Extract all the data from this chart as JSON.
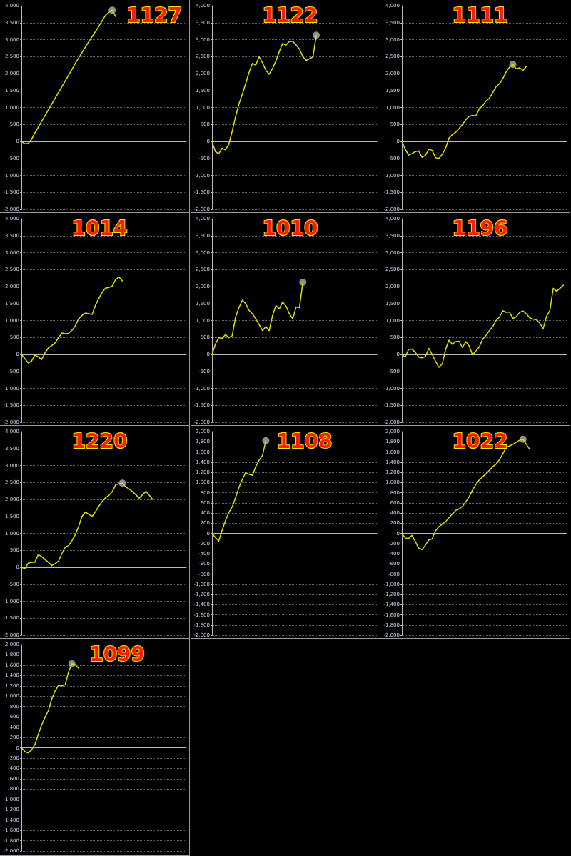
{
  "chart_data": [
    {
      "type": "line",
      "title": "1127",
      "categories": [
        null,
        null,
        null,
        null,
        null,
        null,
        null,
        null,
        null,
        null,
        null,
        null,
        null,
        null,
        null,
        null,
        null,
        null,
        null,
        null,
        null,
        null,
        null,
        null,
        null,
        null,
        null,
        null,
        null,
        null,
        null,
        null,
        null,
        null,
        null,
        null,
        null,
        null,
        null,
        null,
        null,
        null,
        null,
        null,
        null,
        null,
        null,
        null,
        null,
        null
      ],
      "series": [
        {
          "color": "#e0e000",
          "values": [
            0,
            -70,
            -60,
            60,
            250,
            420,
            590,
            760,
            930,
            1100,
            1270,
            1440,
            1610,
            1780,
            1950,
            2120,
            2300,
            2460,
            2620,
            2780,
            2940,
            3090,
            3240,
            3390,
            3560,
            3720,
            3800,
            3870,
            3680,
            null,
            null,
            null,
            null,
            null,
            null,
            null,
            null,
            null,
            null,
            null,
            null,
            null,
            null,
            null,
            null,
            null,
            null,
            null,
            null,
            null
          ]
        },
        {
          "type": "scatter",
          "color": "#b0b0b0",
          "values": [
            null,
            null,
            null,
            null,
            null,
            null,
            null,
            null,
            null,
            null,
            null,
            null,
            null,
            null,
            null,
            null,
            null,
            null,
            null,
            null,
            null,
            null,
            null,
            null,
            null,
            null,
            null,
            3870,
            null,
            null,
            null,
            null,
            null,
            null,
            null,
            null,
            null,
            null,
            null,
            null,
            null,
            null,
            null,
            null,
            null,
            null,
            null,
            null,
            null,
            null
          ]
        }
      ],
      "ylim": [
        -2000,
        4000
      ],
      "yticks": [
        {
          "value": -2000,
          "label": "-2,000"
        },
        {
          "value": -1500,
          "label": "-1,500"
        },
        {
          "value": -1000,
          "label": "-1,000"
        },
        -500,
        0,
        500,
        {
          "value": 1000,
          "label": "1,000"
        },
        {
          "value": 1500,
          "label": "1,500"
        },
        {
          "value": 2000,
          "label": "2,000"
        },
        {
          "value": 2500,
          "label": "2,500"
        },
        {
          "value": 3000,
          "label": "3,000"
        },
        {
          "value": 3500,
          "label": "3,500"
        },
        {
          "value": 4000,
          "label": "4,000"
        }
      ],
      "grid": "y",
      "tick_labels": "y"
    },
    {
      "type": "line",
      "title": "1122",
      "categories": [
        null,
        null,
        null,
        null,
        null,
        null,
        null,
        null,
        null,
        null,
        null,
        null,
        null,
        null,
        null,
        null,
        null,
        null,
        null,
        null,
        null,
        null,
        null,
        null,
        null,
        null,
        null,
        null,
        null,
        null,
        null,
        null,
        null,
        null,
        null,
        null,
        null,
        null,
        null,
        null,
        null,
        null,
        null,
        null,
        null,
        null,
        null,
        null,
        null,
        null
      ],
      "series": [
        {
          "color": "#e0e000",
          "values": [
            0,
            -300,
            -360,
            -200,
            -250,
            -80,
            300,
            730,
            1100,
            1390,
            1700,
            2030,
            2300,
            2250,
            2500,
            2320,
            2100,
            1980,
            2150,
            2370,
            2650,
            2890,
            2840,
            2950,
            2950,
            2840,
            2720,
            2500,
            2390,
            2440,
            2490,
            3130,
            null,
            null,
            null,
            null,
            null,
            null,
            null,
            null,
            null,
            null,
            null,
            null,
            null,
            null,
            null,
            null,
            null,
            null
          ]
        },
        {
          "type": "scatter",
          "color": "#b0b0b0",
          "values": [
            null,
            null,
            null,
            null,
            null,
            null,
            null,
            null,
            null,
            null,
            null,
            null,
            null,
            null,
            null,
            null,
            null,
            null,
            null,
            null,
            null,
            null,
            null,
            null,
            null,
            null,
            null,
            null,
            null,
            null,
            null,
            3130,
            null,
            null,
            null,
            null,
            null,
            null,
            null,
            null,
            null,
            null,
            null,
            null,
            null,
            null,
            null,
            null,
            null,
            null
          ]
        }
      ],
      "ylim": [
        -2000,
        4000
      ],
      "yticks": [
        {
          "value": -2000,
          "label": "-2,000"
        },
        {
          "value": -1500,
          "label": "-1,500"
        },
        {
          "value": -1000,
          "label": "-1,000"
        },
        -500,
        0,
        500,
        {
          "value": 1000,
          "label": "1,000"
        },
        {
          "value": 1500,
          "label": "1,500"
        },
        {
          "value": 2000,
          "label": "2,000"
        },
        {
          "value": 2500,
          "label": "2,500"
        },
        {
          "value": 3000,
          "label": "3,000"
        },
        {
          "value": 3500,
          "label": "3,500"
        },
        {
          "value": 4000,
          "label": "4,000"
        }
      ],
      "grid": "y",
      "tick_labels": "y"
    },
    {
      "type": "line",
      "title": "1111",
      "categories": [
        null,
        null,
        null,
        null,
        null,
        null,
        null,
        null,
        null,
        null,
        null,
        null,
        null,
        null,
        null,
        null,
        null,
        null,
        null,
        null,
        null,
        null,
        null,
        null,
        null,
        null,
        null,
        null,
        null,
        null,
        null,
        null,
        null,
        null,
        null,
        null,
        null,
        null,
        null,
        null,
        null,
        null,
        null,
        null,
        null,
        null,
        null,
        null,
        null,
        null
      ],
      "series": [
        {
          "color": "#e0e000",
          "values": [
            0,
            -230,
            -400,
            -360,
            -300,
            -280,
            -470,
            -410,
            -230,
            -260,
            -480,
            -500,
            -380,
            -200,
            100,
            200,
            270,
            380,
            500,
            640,
            740,
            770,
            750,
            960,
            1050,
            1190,
            1270,
            1440,
            1610,
            1700,
            1850,
            2050,
            2190,
            2270,
            2140,
            2170,
            2090,
            2210,
            null,
            null,
            null,
            null,
            null,
            null,
            null,
            null,
            null,
            null,
            null,
            null
          ]
        },
        {
          "type": "scatter",
          "color": "#b0b0b0",
          "values": [
            null,
            null,
            null,
            null,
            null,
            null,
            null,
            null,
            null,
            null,
            null,
            null,
            null,
            null,
            null,
            null,
            null,
            null,
            null,
            null,
            null,
            null,
            null,
            null,
            null,
            null,
            null,
            null,
            null,
            null,
            null,
            null,
            null,
            2270,
            null,
            null,
            null,
            null,
            null,
            null,
            null,
            null,
            null,
            null,
            null,
            null,
            null,
            null,
            null,
            null
          ]
        }
      ],
      "ylim": [
        -2000,
        4000
      ],
      "yticks": [
        {
          "value": -2000,
          "label": "-2,000"
        },
        {
          "value": -1500,
          "label": "-1,500"
        },
        {
          "value": -1000,
          "label": "-1,000"
        },
        -500,
        0,
        500,
        {
          "value": 1000,
          "label": "1,000"
        },
        {
          "value": 1500,
          "label": "1,500"
        },
        {
          "value": 2000,
          "label": "2,000"
        },
        {
          "value": 2500,
          "label": "2,500"
        },
        {
          "value": 3000,
          "label": "3,000"
        },
        {
          "value": 3500,
          "label": "3,500"
        },
        {
          "value": 4000,
          "label": "4,000"
        }
      ],
      "grid": "y",
      "tick_labels": "y"
    },
    {
      "type": "line",
      "title": "1014",
      "categories": [
        null,
        null,
        null,
        null,
        null,
        null,
        null,
        null,
        null,
        null,
        null,
        null,
        null,
        null,
        null,
        null,
        null,
        null,
        null,
        null,
        null,
        null,
        null,
        null,
        null,
        null,
        null,
        null,
        null,
        null,
        null,
        null,
        null,
        null,
        null,
        null,
        null,
        null,
        null,
        null,
        null,
        null,
        null,
        null,
        null,
        null,
        null,
        null,
        null,
        null
      ],
      "series": [
        {
          "color": "#e0e000",
          "values": [
            0,
            -120,
            -250,
            -200,
            -20,
            -70,
            -150,
            50,
            190,
            260,
            340,
            490,
            630,
            610,
            620,
            710,
            840,
            1050,
            1150,
            1220,
            1200,
            1180,
            1450,
            1650,
            1830,
            1960,
            1970,
            2020,
            2210,
            2280,
            2170,
            null,
            null,
            null,
            null,
            null,
            null,
            null,
            null,
            null,
            null,
            null,
            null,
            null,
            null,
            null,
            null,
            null,
            null,
            null
          ]
        }
      ],
      "ylim": [
        -2000,
        4000
      ],
      "yticks": [
        {
          "value": -2000,
          "label": "-2,000"
        },
        {
          "value": -1500,
          "label": "-1,500"
        },
        {
          "value": -1000,
          "label": "-1,000"
        },
        -500,
        0,
        500,
        {
          "value": 1000,
          "label": "1,000"
        },
        {
          "value": 1500,
          "label": "1,500"
        },
        {
          "value": 2000,
          "label": "2,000"
        },
        {
          "value": 2500,
          "label": "2,500"
        },
        {
          "value": 3000,
          "label": "3,000"
        },
        {
          "value": 3500,
          "label": "3,500"
        },
        {
          "value": 4000,
          "label": "4,000"
        }
      ],
      "grid": "y",
      "tick_labels": "y"
    },
    {
      "type": "line",
      "title": "1010",
      "categories": [
        null,
        null,
        null,
        null,
        null,
        null,
        null,
        null,
        null,
        null,
        null,
        null,
        null,
        null,
        null,
        null,
        null,
        null,
        null,
        null,
        null,
        null,
        null,
        null,
        null,
        null,
        null,
        null,
        null,
        null,
        null,
        null,
        null,
        null,
        null,
        null,
        null,
        null,
        null,
        null,
        null,
        null,
        null,
        null,
        null,
        null,
        null,
        null,
        null,
        null
      ],
      "series": [
        {
          "color": "#e0e000",
          "values": [
            0,
            300,
            500,
            470,
            590,
            490,
            550,
            1100,
            1380,
            1600,
            1500,
            1300,
            1200,
            1050,
            880,
            700,
            820,
            700,
            1150,
            1440,
            1340,
            1550,
            1420,
            1200,
            1050,
            1400,
            1380,
            2130,
            null,
            null,
            null,
            null,
            null,
            null,
            null,
            null,
            null,
            null,
            null,
            null,
            null,
            null,
            null,
            null,
            null,
            null,
            null,
            null,
            null,
            null
          ]
        },
        {
          "type": "scatter",
          "color": "#b0b0b0",
          "values": [
            null,
            null,
            null,
            null,
            null,
            null,
            null,
            null,
            null,
            null,
            null,
            null,
            null,
            null,
            null,
            null,
            null,
            null,
            null,
            null,
            null,
            null,
            null,
            null,
            null,
            null,
            null,
            2130,
            null,
            null,
            null,
            null,
            null,
            null,
            null,
            null,
            null,
            null,
            null,
            null,
            null,
            null,
            null,
            null,
            null,
            null,
            null,
            null,
            null,
            null
          ]
        }
      ],
      "ylim": [
        -2000,
        4000
      ],
      "yticks": [
        {
          "value": -2000,
          "label": "-2,000"
        },
        {
          "value": -1500,
          "label": "-1,500"
        },
        {
          "value": -1000,
          "label": "-1,000"
        },
        -500,
        0,
        500,
        {
          "value": 1000,
          "label": "1,000"
        },
        {
          "value": 1500,
          "label": "1,500"
        },
        {
          "value": 2000,
          "label": "2,000"
        },
        {
          "value": 2500,
          "label": "2,500"
        },
        {
          "value": 3000,
          "label": "3,000"
        },
        {
          "value": 3500,
          "label": "3,500"
        },
        {
          "value": 4000,
          "label": "4,000"
        }
      ],
      "grid": "y",
      "tick_labels": "y"
    },
    {
      "type": "line",
      "title": "1196",
      "categories": [
        null,
        null,
        null,
        null,
        null,
        null,
        null,
        null,
        null,
        null,
        null,
        null,
        null,
        null,
        null,
        null,
        null,
        null,
        null,
        null,
        null,
        null,
        null,
        null,
        null,
        null,
        null,
        null,
        null,
        null,
        null,
        null,
        null,
        null,
        null,
        null,
        null,
        null,
        null,
        null,
        null,
        null,
        null,
        null,
        null,
        null,
        null,
        null,
        null,
        null
      ],
      "series": [
        {
          "color": "#e0e000",
          "values": [
            0,
            -80,
            150,
            160,
            60,
            -80,
            -100,
            -60,
            180,
            0,
            -200,
            -380,
            -280,
            150,
            420,
            300,
            380,
            390,
            200,
            380,
            250,
            -10,
            100,
            220,
            450,
            560,
            700,
            820,
            1000,
            1100,
            1290,
            1240,
            1250,
            1060,
            1110,
            1240,
            1280,
            1200,
            1080,
            1040,
            1020,
            920,
            760,
            1120,
            1300,
            1950,
            1860,
            1950,
            2040,
            null
          ]
        }
      ],
      "ylim": [
        -2000,
        4000
      ],
      "yticks": [
        {
          "value": -2000,
          "label": "-2,000"
        },
        {
          "value": -1500,
          "label": "-1,500"
        },
        {
          "value": -1000,
          "label": "-1,000"
        },
        -500,
        0,
        500,
        {
          "value": 1000,
          "label": "1,000"
        },
        {
          "value": 1500,
          "label": "1,500"
        },
        {
          "value": 2000,
          "label": "2,000"
        },
        {
          "value": 2500,
          "label": "2,500"
        },
        {
          "value": 3000,
          "label": "3,000"
        },
        {
          "value": 3500,
          "label": "3,500"
        },
        {
          "value": 4000,
          "label": "4,000"
        }
      ],
      "grid": "y",
      "tick_labels": "y"
    },
    {
      "type": "line",
      "title": "1220",
      "categories": [
        null,
        null,
        null,
        null,
        null,
        null,
        null,
        null,
        null,
        null,
        null,
        null,
        null,
        null,
        null,
        null,
        null,
        null,
        null,
        null,
        null,
        null,
        null,
        null,
        null,
        null,
        null,
        null,
        null,
        null,
        null,
        null,
        null,
        null,
        null,
        null,
        null,
        null,
        null,
        null,
        null,
        null,
        null,
        null,
        null,
        null,
        null,
        null,
        null,
        null
      ],
      "series": [
        {
          "color": "#e0e000",
          "values": [
            0,
            -40,
            120,
            150,
            150,
            370,
            320,
            230,
            150,
            50,
            110,
            180,
            400,
            590,
            640,
            780,
            960,
            1200,
            1500,
            1630,
            1560,
            1500,
            1640,
            1800,
            1940,
            2050,
            2120,
            2230,
            2430,
            2460,
            2480,
            2370,
            2310,
            2230,
            2140,
            2040,
            2140,
            2240,
            2120,
            2000,
            null,
            null,
            null,
            null,
            null,
            null,
            null,
            null,
            null,
            null
          ]
        },
        {
          "type": "scatter",
          "color": "#b0b0b0",
          "values": [
            null,
            null,
            null,
            null,
            null,
            null,
            null,
            null,
            null,
            null,
            null,
            null,
            null,
            null,
            null,
            null,
            null,
            null,
            null,
            null,
            null,
            null,
            null,
            null,
            null,
            null,
            null,
            null,
            null,
            null,
            2480,
            null,
            null,
            null,
            null,
            null,
            null,
            null,
            null,
            null,
            null,
            null,
            null,
            null,
            null,
            null,
            null,
            null,
            null,
            null
          ]
        }
      ],
      "ylim": [
        -2000,
        4000
      ],
      "yticks": [
        {
          "value": -2000,
          "label": "-2,000"
        },
        {
          "value": -1500,
          "label": "-1,500"
        },
        {
          "value": -1000,
          "label": "-1,000"
        },
        -500,
        0,
        500,
        {
          "value": 1000,
          "label": "1,000"
        },
        {
          "value": 1500,
          "label": "1,500"
        },
        {
          "value": 2000,
          "label": "2,000"
        },
        {
          "value": 2500,
          "label": "2,500"
        },
        {
          "value": 3000,
          "label": "3,000"
        },
        {
          "value": 3500,
          "label": "3,500"
        },
        {
          "value": 4000,
          "label": "4,000"
        }
      ],
      "grid": "y",
      "tick_labels": "y"
    },
    {
      "type": "line",
      "title": "1108",
      "categories": [
        null,
        null,
        null,
        null,
        null,
        null,
        null,
        null,
        null,
        null,
        null,
        null,
        null,
        null,
        null,
        null,
        null,
        null,
        null,
        null,
        null,
        null,
        null,
        null,
        null,
        null,
        null,
        null,
        null,
        null,
        null,
        null,
        null,
        null,
        null,
        null,
        null,
        null,
        null,
        null,
        null,
        null,
        null,
        null,
        null,
        null,
        null,
        null,
        null,
        null
      ],
      "series": [
        {
          "color": "#e0e000",
          "values": [
            0,
            -80,
            -150,
            60,
            250,
            410,
            520,
            700,
            900,
            1060,
            1190,
            1160,
            1140,
            1310,
            1440,
            1530,
            1820,
            null,
            null,
            null,
            null,
            null,
            null,
            null,
            null,
            null,
            null,
            null,
            null,
            null,
            null,
            null,
            null,
            null,
            null,
            null,
            null,
            null,
            null,
            null,
            null,
            null,
            null,
            null,
            null,
            null,
            null,
            null,
            null,
            null
          ]
        },
        {
          "type": "scatter",
          "color": "#b0b0b0",
          "values": [
            null,
            null,
            null,
            null,
            null,
            null,
            null,
            null,
            null,
            null,
            null,
            null,
            null,
            null,
            null,
            null,
            1820,
            null,
            null,
            null,
            null,
            null,
            null,
            null,
            null,
            null,
            null,
            null,
            null,
            null,
            null,
            null,
            null,
            null,
            null,
            null,
            null,
            null,
            null,
            null,
            null,
            null,
            null,
            null,
            null,
            null,
            null,
            null,
            null,
            null
          ]
        }
      ],
      "ylim": [
        -2000,
        2000
      ],
      "yticks": [
        {
          "value": -2000,
          "label": "-2,000"
        },
        {
          "value": -1800,
          "label": "-1,800"
        },
        {
          "value": -1600,
          "label": "-1,600"
        },
        {
          "value": -1400,
          "label": "-1,400"
        },
        {
          "value": -1200,
          "label": "-1,200"
        },
        {
          "value": -1000,
          "label": "-1,000"
        },
        -800,
        -600,
        -400,
        -200,
        0,
        200,
        400,
        600,
        800,
        {
          "value": 1000,
          "label": "1,000"
        },
        {
          "value": 1200,
          "label": "1,200"
        },
        {
          "value": 1400,
          "label": "1,400"
        },
        {
          "value": 1600,
          "label": "1,600"
        },
        {
          "value": 1800,
          "label": "1,800"
        },
        {
          "value": 2000,
          "label": "2,000"
        }
      ],
      "grid": "y",
      "tick_labels": "y"
    },
    {
      "type": "line",
      "title": "1022",
      "categories": [
        null,
        null,
        null,
        null,
        null,
        null,
        null,
        null,
        null,
        null,
        null,
        null,
        null,
        null,
        null,
        null,
        null,
        null,
        null,
        null,
        null,
        null,
        null,
        null,
        null,
        null,
        null,
        null,
        null,
        null,
        null,
        null,
        null,
        null,
        null,
        null,
        null,
        null,
        null,
        null,
        null,
        null,
        null,
        null,
        null,
        null,
        null,
        null,
        null,
        null
      ],
      "series": [
        {
          "color": "#e0e000",
          "values": [
            0,
            -90,
            -100,
            -40,
            -160,
            -290,
            -320,
            -230,
            -130,
            -110,
            50,
            130,
            180,
            230,
            310,
            380,
            450,
            480,
            530,
            620,
            720,
            850,
            960,
            1050,
            1110,
            1170,
            1240,
            1310,
            1360,
            1450,
            1560,
            1690,
            1720,
            1750,
            1790,
            1830,
            1850,
            1750,
            1650,
            null,
            null,
            null,
            null,
            null,
            null,
            null,
            null,
            null,
            null,
            null
          ]
        },
        {
          "type": "scatter",
          "color": "#b0b0b0",
          "values": [
            null,
            null,
            null,
            null,
            null,
            null,
            null,
            null,
            null,
            null,
            null,
            null,
            null,
            null,
            null,
            null,
            null,
            null,
            null,
            null,
            null,
            null,
            null,
            null,
            null,
            null,
            null,
            null,
            null,
            null,
            null,
            null,
            null,
            null,
            null,
            null,
            1850,
            null,
            null,
            null,
            null,
            null,
            null,
            null,
            null,
            null,
            null,
            null,
            null,
            null
          ]
        }
      ],
      "ylim": [
        -2000,
        2000
      ],
      "yticks": [
        {
          "value": -2000,
          "label": "-2,000"
        },
        {
          "value": -1800,
          "label": "-1,800"
        },
        {
          "value": -1600,
          "label": "-1,600"
        },
        {
          "value": -1400,
          "label": "-1,400"
        },
        {
          "value": -1200,
          "label": "-1,200"
        },
        {
          "value": -1000,
          "label": "-1,000"
        },
        -800,
        -600,
        -400,
        -200,
        0,
        200,
        400,
        600,
        800,
        {
          "value": 1000,
          "label": "1,000"
        },
        {
          "value": 1200,
          "label": "1,200"
        },
        {
          "value": 1400,
          "label": "1,400"
        },
        {
          "value": 1600,
          "label": "1,600"
        },
        {
          "value": 1800,
          "label": "1,800"
        },
        {
          "value": 2000,
          "label": "2,000"
        }
      ],
      "grid": "y",
      "tick_labels": "y"
    },
    {
      "type": "line",
      "title": "1099",
      "categories": [
        null,
        null,
        null,
        null,
        null,
        null,
        null,
        null,
        null,
        null,
        null,
        null,
        null,
        null,
        null,
        null,
        null,
        null,
        null,
        null,
        null,
        null,
        null,
        null,
        null,
        null,
        null,
        null,
        null,
        null,
        null,
        null,
        null,
        null,
        null,
        null,
        null,
        null,
        null,
        null,
        null,
        null,
        null,
        null,
        null,
        null,
        null,
        null,
        null,
        null
      ],
      "series": [
        {
          "color": "#e0e000",
          "values": [
            0,
            -70,
            -100,
            -40,
            60,
            260,
            440,
            590,
            720,
            940,
            1100,
            1210,
            1200,
            1220,
            1470,
            1630,
            1610,
            1540,
            null,
            null,
            null,
            null,
            null,
            null,
            null,
            null,
            null,
            null,
            null,
            null,
            null,
            null,
            null,
            null,
            null,
            null,
            null,
            null,
            null,
            null,
            null,
            null,
            null,
            null,
            null,
            null,
            null,
            null,
            null,
            null
          ]
        },
        {
          "type": "scatter",
          "color": "#b0b0b0",
          "values": [
            null,
            null,
            null,
            null,
            null,
            null,
            null,
            null,
            null,
            null,
            null,
            null,
            null,
            null,
            null,
            1630,
            null,
            null,
            null,
            null,
            null,
            null,
            null,
            null,
            null,
            null,
            null,
            null,
            null,
            null,
            null,
            null,
            null,
            null,
            null,
            null,
            null,
            null,
            null,
            null,
            null,
            null,
            null,
            null,
            null,
            null,
            null,
            null,
            null,
            null
          ]
        }
      ],
      "ylim": [
        -2000,
        2000
      ],
      "yticks": [
        {
          "value": -2000,
          "label": "-2,000"
        },
        {
          "value": -1800,
          "label": "-1,800"
        },
        {
          "value": -1600,
          "label": "-1,600"
        },
        {
          "value": -1400,
          "label": "-1,400"
        },
        {
          "value": -1200,
          "label": "-1,200"
        },
        {
          "value": -1000,
          "label": "-1,000"
        },
        -800,
        -600,
        -400,
        -200,
        0,
        200,
        400,
        600,
        800,
        {
          "value": 1000,
          "label": "1,000"
        },
        {
          "value": 1200,
          "label": "1,200"
        },
        {
          "value": 1400,
          "label": "1,400"
        },
        {
          "value": 1600,
          "label": "1,600"
        },
        {
          "value": 1800,
          "label": "1,800"
        },
        {
          "value": 2000,
          "label": "2,000"
        }
      ],
      "grid": "y",
      "tick_labels": "y"
    }
  ]
}
